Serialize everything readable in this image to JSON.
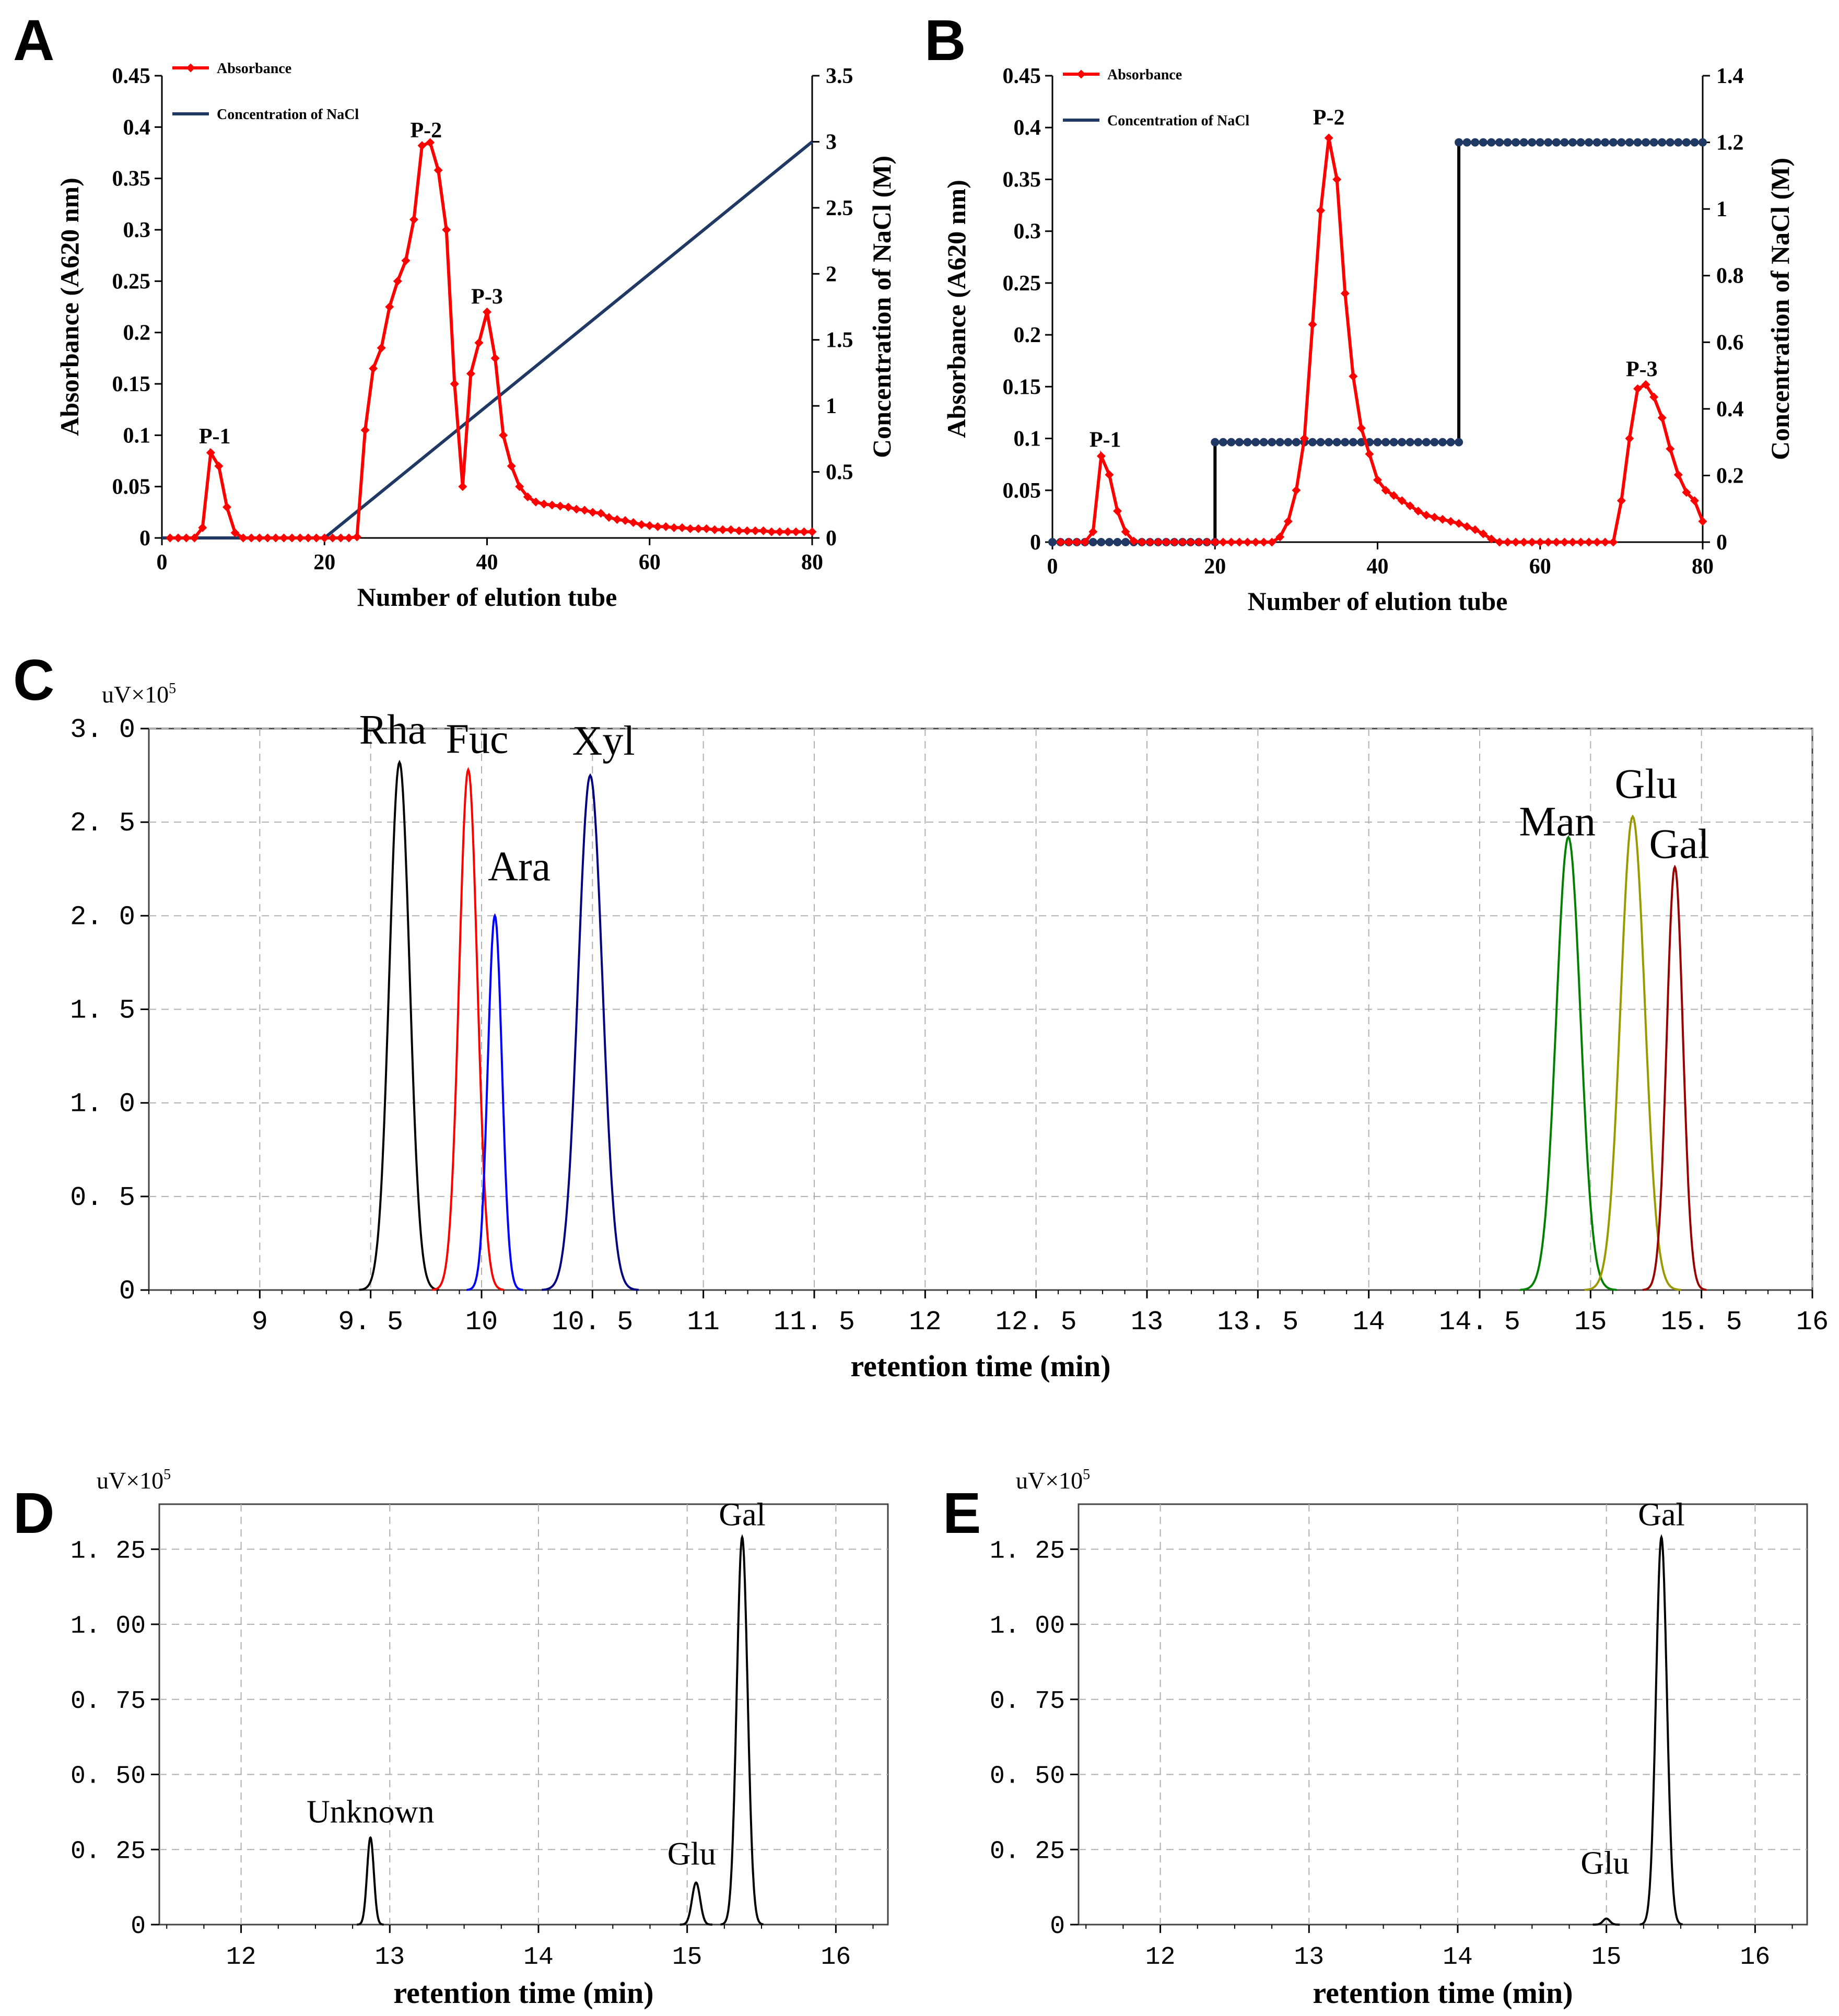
{
  "figure": {
    "panels": [
      "A",
      "B",
      "C",
      "D",
      "E"
    ]
  },
  "chart_data": [
    {
      "id": "A",
      "type": "line",
      "panel_label": "A",
      "xlabel": "Number  of elution tube",
      "ylabel": "Absorbance  (A620 nm)",
      "y2label": "Concentration of NaCl (M)",
      "xlim": [
        0,
        80
      ],
      "ylim": [
        0,
        0.45
      ],
      "y2lim": [
        0,
        3.5
      ],
      "xticks": [
        "0",
        "20",
        "40",
        "60",
        "80"
      ],
      "yticks": [
        "0",
        "0.05",
        "0.1",
        "0.15",
        "0.2",
        "0.25",
        "0.3",
        "0.35",
        "0.4",
        "0.45"
      ],
      "y2ticks": [
        "0",
        "0.5",
        "1",
        "1.5",
        "2",
        "2.5",
        "3",
        "3.5"
      ],
      "legend": [
        "Absorbance",
        "Concentration of NaCl"
      ],
      "series": [
        {
          "name": "Absorbance",
          "color": "#ff0000",
          "axis": "left",
          "x": [
            1,
            2,
            3,
            4,
            5,
            6,
            7,
            8,
            9,
            10,
            11,
            12,
            13,
            14,
            15,
            16,
            17,
            18,
            19,
            20,
            21,
            22,
            23,
            24,
            25,
            26,
            27,
            28,
            29,
            30,
            31,
            32,
            33,
            34,
            35,
            36,
            37,
            38,
            39,
            40,
            41,
            42,
            43,
            44,
            45,
            46,
            47,
            48,
            49,
            50,
            51,
            52,
            53,
            54,
            55,
            56,
            57,
            58,
            59,
            60,
            61,
            62,
            63,
            64,
            65,
            66,
            67,
            68,
            69,
            70,
            71,
            72,
            73,
            74,
            75,
            76,
            77,
            78,
            79,
            80
          ],
          "y": [
            0,
            0,
            0,
            0,
            0.01,
            0.083,
            0.07,
            0.03,
            0.005,
            0,
            0,
            0,
            0,
            0,
            0,
            0,
            0,
            0,
            0,
            0,
            0,
            0,
            0,
            0.001,
            0.105,
            0.165,
            0.185,
            0.225,
            0.25,
            0.27,
            0.31,
            0.382,
            0.385,
            0.358,
            0.3,
            0.15,
            0.05,
            0.16,
            0.19,
            0.22,
            0.175,
            0.1,
            0.07,
            0.05,
            0.04,
            0.035,
            0.033,
            0.032,
            0.031,
            0.03,
            0.028,
            0.027,
            0.025,
            0.024,
            0.02,
            0.018,
            0.017,
            0.015,
            0.013,
            0.012,
            0.011,
            0.011,
            0.01,
            0.01,
            0.009,
            0.009,
            0.009,
            0.008,
            0.008,
            0.008,
            0.007,
            0.007,
            0.007,
            0.007,
            0.006,
            0.006,
            0.006,
            0.006,
            0.006,
            0.006
          ]
        },
        {
          "name": "Concentration of NaCl",
          "color": "#1f3864",
          "axis": "right",
          "x": [
            0,
            20,
            80
          ],
          "y": [
            0,
            0,
            3.0
          ]
        }
      ],
      "annotations": [
        {
          "text": "P-1",
          "x": 6.5,
          "y": 0.092
        },
        {
          "text": "P-2",
          "x": 32.5,
          "y": 0.39
        },
        {
          "text": "P-3",
          "x": 40,
          "y": 0.228
        }
      ]
    },
    {
      "id": "B",
      "type": "line",
      "panel_label": "B",
      "xlabel": "Number  of elution tube",
      "ylabel": "Absorbance  (A620 nm)",
      "y2label": "Concentration of NaCl (M)",
      "xlim": [
        0,
        80
      ],
      "ylim": [
        0,
        0.45
      ],
      "y2lim": [
        0,
        1.4
      ],
      "xticks": [
        "0",
        "20",
        "40",
        "60",
        "80"
      ],
      "yticks": [
        "0",
        "0.05",
        "0.1",
        "0.15",
        "0.2",
        "0.25",
        "0.3",
        "0.35",
        "0.4",
        "0.45"
      ],
      "y2ticks": [
        "0",
        "0.2",
        "0.4",
        "0.6",
        "0.8",
        "1",
        "1.2",
        "1.4"
      ],
      "legend": [
        "Absorbance",
        "Concentration of NaCl"
      ],
      "series": [
        {
          "name": "Absorbance",
          "color": "#ff0000",
          "axis": "left",
          "x": [
            1,
            2,
            3,
            4,
            5,
            6,
            7,
            8,
            9,
            10,
            11,
            12,
            13,
            14,
            15,
            16,
            17,
            18,
            19,
            20,
            21,
            22,
            23,
            24,
            25,
            26,
            27,
            28,
            29,
            30,
            31,
            32,
            33,
            34,
            35,
            36,
            37,
            38,
            39,
            40,
            41,
            42,
            43,
            44,
            45,
            46,
            47,
            48,
            49,
            50,
            51,
            52,
            53,
            54,
            55,
            56,
            57,
            58,
            59,
            60,
            61,
            62,
            63,
            64,
            65,
            66,
            67,
            68,
            69,
            70,
            71,
            72,
            73,
            74,
            75,
            76,
            77,
            78,
            79,
            80
          ],
          "y": [
            0,
            0,
            0,
            0,
            0.01,
            0.083,
            0.065,
            0.03,
            0.01,
            0.001,
            0,
            0,
            0,
            0,
            0,
            0,
            0,
            0,
            0,
            0,
            0,
            0,
            0,
            0,
            0,
            0,
            0,
            0.005,
            0.02,
            0.05,
            0.1,
            0.21,
            0.32,
            0.39,
            0.35,
            0.24,
            0.16,
            0.11,
            0.085,
            0.06,
            0.05,
            0.045,
            0.04,
            0.035,
            0.03,
            0.026,
            0.024,
            0.022,
            0.02,
            0.018,
            0.015,
            0.012,
            0.008,
            0.003,
            0,
            0,
            0,
            0,
            0,
            0,
            0,
            0,
            0,
            0,
            0,
            0,
            0,
            0,
            0,
            0.04,
            0.1,
            0.148,
            0.152,
            0.14,
            0.12,
            0.09,
            0.065,
            0.048,
            0.04,
            0.02
          ]
        },
        {
          "name": "Concentration of NaCl",
          "color": "#1f3864",
          "axis": "right",
          "x": [
            0,
            20,
            20,
            50,
            50,
            80
          ],
          "y": [
            0,
            0,
            0.3,
            0.3,
            1.2,
            1.2
          ]
        }
      ],
      "annotations": [
        {
          "text": "P-1",
          "x": 6.5,
          "y": 0.092
        },
        {
          "text": "P-2",
          "x": 34,
          "y": 0.403
        },
        {
          "text": "P-3",
          "x": 72.5,
          "y": 0.16
        }
      ]
    },
    {
      "id": "C",
      "type": "line",
      "panel_label": "C",
      "unit_label": "uV×10",
      "unit_exponent": "5",
      "xlabel": "retention time (min)",
      "xlim": [
        8.5,
        16
      ],
      "ylim": [
        0,
        3.0
      ],
      "xticks": [
        "9",
        "9. 5",
        "10",
        "10. 5",
        "11",
        "11. 5",
        "12",
        "12. 5",
        "13",
        "13. 5",
        "14",
        "14. 5",
        "15",
        "15. 5",
        "16"
      ],
      "yticks": [
        "0",
        "0. 5",
        "1. 0",
        "1. 5",
        "2. 0",
        "2. 5",
        "3. 0"
      ],
      "series": [
        {
          "name": "Rha",
          "color": "#000000",
          "center": 9.63,
          "width": 0.1,
          "height": 2.82
        },
        {
          "name": "Fuc",
          "color": "#ff0000",
          "center": 9.94,
          "width": 0.09,
          "height": 2.78
        },
        {
          "name": "Ara",
          "color": "#0000ff",
          "center": 10.06,
          "width": 0.07,
          "height": 2.0
        },
        {
          "name": "Xyl",
          "color": "#000080",
          "center": 10.49,
          "width": 0.12,
          "height": 2.75
        },
        {
          "name": "Man",
          "color": "#008000",
          "center": 14.9,
          "width": 0.12,
          "height": 2.42
        },
        {
          "name": "Glu",
          "color": "#999900",
          "center": 15.19,
          "width": 0.12,
          "height": 2.53
        },
        {
          "name": "Gal",
          "color": "#990000",
          "center": 15.38,
          "width": 0.08,
          "height": 2.26
        }
      ],
      "annotations": [
        {
          "text": "Rha",
          "x": 9.6,
          "y": 2.92
        },
        {
          "text": "Fuc",
          "x": 9.98,
          "y": 2.87
        },
        {
          "text": "Ara",
          "x": 10.17,
          "y": 2.19
        },
        {
          "text": "Xyl",
          "x": 10.55,
          "y": 2.86
        },
        {
          "text": "Man",
          "x": 14.85,
          "y": 2.43
        },
        {
          "text": "Glu",
          "x": 15.25,
          "y": 2.63
        },
        {
          "text": "Gal",
          "x": 15.4,
          "y": 2.31
        }
      ]
    },
    {
      "id": "D",
      "type": "line",
      "panel_label": "D",
      "unit_label": "uV×10",
      "unit_exponent": "5",
      "xlabel": "retention time (min)",
      "xlim": [
        11.45,
        16.35
      ],
      "ylim": [
        0,
        1.4
      ],
      "xticks": [
        "12",
        "13",
        "14",
        "15",
        "16"
      ],
      "xtick_values": [
        12,
        13,
        14,
        15,
        16
      ],
      "yticks": [
        "0",
        "0. 25",
        "0. 50",
        "0. 75",
        "1. 00",
        "1. 25"
      ],
      "ytick_values": [
        0,
        0.25,
        0.5,
        0.75,
        1.0,
        1.25
      ],
      "series": [
        {
          "name": "Unknown",
          "color": "#000000",
          "center": 12.87,
          "width": 0.05,
          "height": 0.29
        },
        {
          "name": "Glu",
          "color": "#000000",
          "center": 15.06,
          "width": 0.06,
          "height": 0.14
        },
        {
          "name": "Gal",
          "color": "#000000",
          "center": 15.37,
          "width": 0.08,
          "height": 1.29
        }
      ],
      "annotations": [
        {
          "text": "Unknown",
          "x": 12.87,
          "y": 0.34
        },
        {
          "text": "Glu",
          "x": 15.03,
          "y": 0.2
        },
        {
          "text": "Gal",
          "x": 15.37,
          "y": 1.33
        }
      ]
    },
    {
      "id": "E",
      "type": "line",
      "panel_label": "E",
      "unit_label": "uV×10",
      "unit_exponent": "5",
      "xlabel": "retention time (min)",
      "xlim": [
        11.45,
        16.35
      ],
      "ylim": [
        0,
        1.4
      ],
      "xticks": [
        "12",
        "13",
        "14",
        "15",
        "16"
      ],
      "xtick_values": [
        12,
        13,
        14,
        15,
        16
      ],
      "yticks": [
        "0",
        "0. 25",
        "0. 50",
        "0. 75",
        "1. 00",
        "1. 25"
      ],
      "ytick_values": [
        0,
        0.25,
        0.5,
        0.75,
        1.0,
        1.25
      ],
      "series": [
        {
          "name": "Glu",
          "color": "#000000",
          "center": 15.0,
          "width": 0.05,
          "height": 0.02
        },
        {
          "name": "Gal",
          "color": "#000000",
          "center": 15.37,
          "width": 0.08,
          "height": 1.29
        }
      ],
      "annotations": [
        {
          "text": "Glu",
          "x": 14.99,
          "y": 0.17
        },
        {
          "text": "Gal",
          "x": 15.37,
          "y": 1.33
        }
      ]
    }
  ]
}
